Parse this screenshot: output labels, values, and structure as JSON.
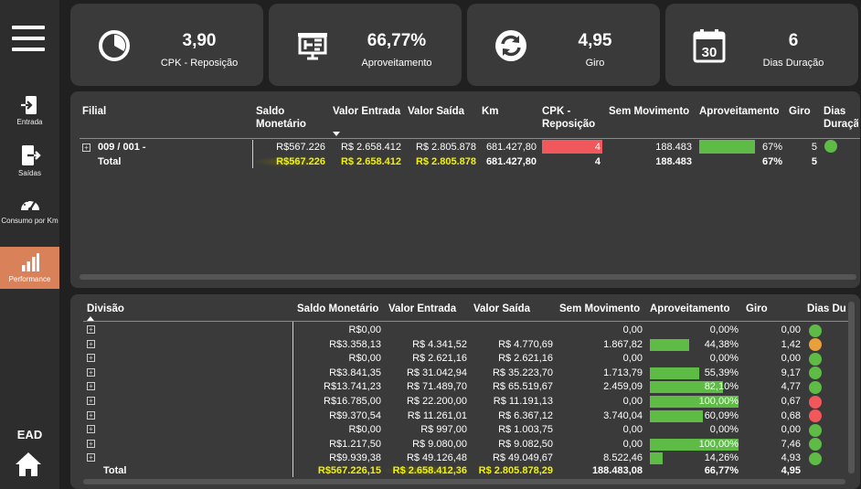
{
  "sidebar": {
    "items": [
      {
        "label": "Entrada",
        "icon": "door-enter-icon"
      },
      {
        "label": "Saídas",
        "icon": "door-exit-icon"
      },
      {
        "label": "Consumo por Km",
        "icon": "speedometer-icon"
      },
      {
        "label": "Performance",
        "icon": "bar-chart-icon"
      }
    ],
    "brand": "EAD"
  },
  "kpis": [
    {
      "value": "3,90",
      "label": "CPK - Reposição",
      "icon": "pie-chart-icon"
    },
    {
      "value": "66,77%",
      "label": "Aproveitamento",
      "icon": "presentation-board-icon"
    },
    {
      "value": "4,95",
      "label": "Giro",
      "icon": "refresh-cycle-icon"
    },
    {
      "value": "6",
      "label": "Dias Duração",
      "icon": "calendar-30-icon"
    }
  ],
  "filial_table": {
    "headers": {
      "filial": "Filial",
      "saldo": "Saldo Monetário",
      "entrada": "Valor Entrada",
      "saida": "Valor Saída",
      "km": "Km",
      "cpk": "CPK - Reposição",
      "sem_mov": "Sem Movimento",
      "aprov": "Aproveitamento",
      "giro": "Giro",
      "dias": "Dias Duração"
    },
    "row": {
      "filial": "009 / 001 -",
      "saldo": "R$567.226",
      "entrada": "R$ 2.658.412",
      "saida": "R$ 2.805.878",
      "km": "681.427,80",
      "cpk": "4",
      "sem_mov": "188.483",
      "aprov": "67%",
      "aprov_fraction": 0.67,
      "giro": "5",
      "dias_status": "green"
    },
    "total": {
      "label": "Total",
      "saldo": "R$567.226",
      "entrada": "R$ 2.658.412",
      "saida": "R$ 2.805.878",
      "km": "681.427,80",
      "cpk": "4",
      "sem_mov": "188.483",
      "aprov": "67%",
      "giro": "5"
    }
  },
  "divisao_table": {
    "headers": {
      "divisao": "Divisão",
      "saldo": "Saldo Monetário",
      "entrada": "Valor Entrada",
      "saida": "Valor Saída",
      "sem_mov": "Sem Movimento",
      "aprov": "Aproveitamento",
      "giro": "Giro",
      "dias": "Dias Du"
    },
    "rows": [
      {
        "saldo": "R$0,00",
        "entrada": "",
        "saida": "",
        "sem_mov": "0,00",
        "aprov": "0,00%",
        "aprov_fraction": 0.0,
        "giro": "0,00",
        "status": "green"
      },
      {
        "saldo": "R$3.358,13",
        "entrada": "R$ 4.341,52",
        "saida": "R$ 4.770,69",
        "sem_mov": "1.867,82",
        "aprov": "44,38%",
        "aprov_fraction": 0.4438,
        "giro": "1,42",
        "status": "orange"
      },
      {
        "saldo": "R$0,00",
        "entrada": "R$ 2.621,16",
        "saida": "R$ 2.621,16",
        "sem_mov": "0,00",
        "aprov": "0,00%",
        "aprov_fraction": 0.0,
        "giro": "0,00",
        "status": "green"
      },
      {
        "saldo": "R$3.841,35",
        "entrada": "R$ 31.042,94",
        "saida": "R$ 35.223,70",
        "sem_mov": "1.713,79",
        "aprov": "55,39%",
        "aprov_fraction": 0.5539,
        "giro": "9,17",
        "status": "green"
      },
      {
        "saldo": "R$13.741,23",
        "entrada": "R$ 71.489,70",
        "saida": "R$ 65.519,67",
        "sem_mov": "2.459,09",
        "aprov": "82,10%",
        "aprov_fraction": 0.821,
        "giro": "4,77",
        "status": "green"
      },
      {
        "saldo": "R$16.785,00",
        "entrada": "R$ 22.200,00",
        "saida": "R$ 11.191,13",
        "sem_mov": "0,00",
        "aprov": "100,00%",
        "aprov_fraction": 1.0,
        "giro": "0,67",
        "status": "red"
      },
      {
        "saldo": "R$9.370,54",
        "entrada": "R$ 11.261,01",
        "saida": "R$ 6.367,12",
        "sem_mov": "3.740,04",
        "aprov": "60,09%",
        "aprov_fraction": 0.6009,
        "giro": "0,68",
        "status": "red"
      },
      {
        "saldo": "R$0,00",
        "entrada": "R$ 997,00",
        "saida": "R$ 1.003,75",
        "sem_mov": "0,00",
        "aprov": "0,00%",
        "aprov_fraction": 0.0,
        "giro": "0,00",
        "status": "green"
      },
      {
        "saldo": "R$1.217,50",
        "entrada": "R$ 9.080,00",
        "saida": "R$ 9.082,50",
        "sem_mov": "0,00",
        "aprov": "100,00%",
        "aprov_fraction": 1.0,
        "giro": "7,46",
        "status": "green"
      },
      {
        "saldo": "R$9.939,38",
        "entrada": "R$ 49.126,48",
        "saida": "R$ 49.049,67",
        "sem_mov": "8.522,46",
        "aprov": "14,26%",
        "aprov_fraction": 0.1426,
        "giro": "4,93",
        "status": "green"
      }
    ],
    "total": {
      "label": "Total",
      "saldo": "R$567.226,15",
      "entrada": "R$ 2.658.412,36",
      "saida": "R$ 2.805.878,29",
      "sem_mov": "188.483,08",
      "aprov": "66,77%",
      "giro": "4,95"
    }
  },
  "colors": {
    "bg": "#202020",
    "panel": "#3a3a3a",
    "sidebar": "#2d2d2d",
    "active_nav": "#d9825a",
    "bar_green": "#5dbb46",
    "cpk_red": "#f0585b",
    "status_green": "#5dbb46",
    "status_orange": "#e8a13a",
    "status_red": "#f0585b",
    "highlight_yellow": "#f2f200"
  }
}
